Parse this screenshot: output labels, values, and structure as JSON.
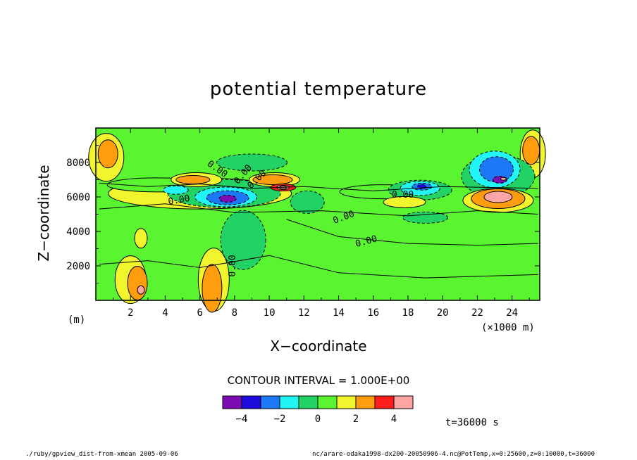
{
  "chart_data": {
    "type": "heatmap",
    "title": "potential temperature",
    "xlabel": "X−coordinate",
    "ylabel": "Z−coordinate",
    "y_unit_label": "(m)",
    "x_unit_label": "(×1000 m)",
    "xlim": [
      0,
      25.6
    ],
    "ylim": [
      0,
      10000
    ],
    "x_ticks": [
      2,
      4,
      6,
      8,
      10,
      12,
      14,
      16,
      18,
      20,
      22,
      24
    ],
    "y_ticks": [
      2000,
      4000,
      6000,
      8000
    ],
    "contour_interval_label": "CONTOUR INTERVAL = 1.000E+00",
    "contour_labels": [
      "0.00",
      "0.00",
      "0.00",
      "0.00",
      "0.00",
      "0.00",
      "0.00",
      "0.00"
    ],
    "colorbar": {
      "levels": [
        -5,
        -4,
        -3,
        -2,
        -1,
        0,
        1,
        2,
        3,
        4,
        5
      ],
      "tick_labels": [
        "−4",
        "−2",
        "0",
        "2",
        "4"
      ],
      "tick_values": [
        -4,
        -2,
        0,
        2,
        4
      ],
      "colors": [
        "#7d0cb4",
        "#1c0bdc",
        "#1c78f5",
        "#22f5f5",
        "#22d264",
        "#5af530",
        "#f0f52d",
        "#ff9d0f",
        "#ff1e1e",
        "#ffa5a5"
      ]
    },
    "features": [
      {
        "x": 7.6,
        "z": 5900,
        "value": -4.5
      },
      {
        "x": 10.8,
        "z": 6500,
        "value": 5
      },
      {
        "x": 18.7,
        "z": 6600,
        "value": -3.5
      },
      {
        "x": 23.0,
        "z": 7800,
        "value": -3
      },
      {
        "x": 23.3,
        "z": 7000,
        "value": -4.5
      },
      {
        "x": 23.2,
        "z": 5900,
        "value": 4.5
      },
      {
        "x": 0.5,
        "z": 8500,
        "value": 2.6
      },
      {
        "x": 25.0,
        "z": 8700,
        "value": 2.6
      },
      {
        "x": 2.6,
        "z": 700,
        "value": 4
      },
      {
        "x": 6.7,
        "z": 800,
        "value": 2.8
      },
      {
        "x": 8.5,
        "z": 3200,
        "value": -1.6
      },
      {
        "x": 12.0,
        "z": 5700,
        "value": -1.4
      }
    ]
  },
  "annotations": {
    "time": "t=36000 s",
    "footer_left": "./ruby/gpview_dist-from-xmean   2005-09-06",
    "footer_right": "nc/arare-odaka1998-dx200-20050906-4.nc@PotTemp,x=0:25600,z=0:10000,t=36000"
  }
}
